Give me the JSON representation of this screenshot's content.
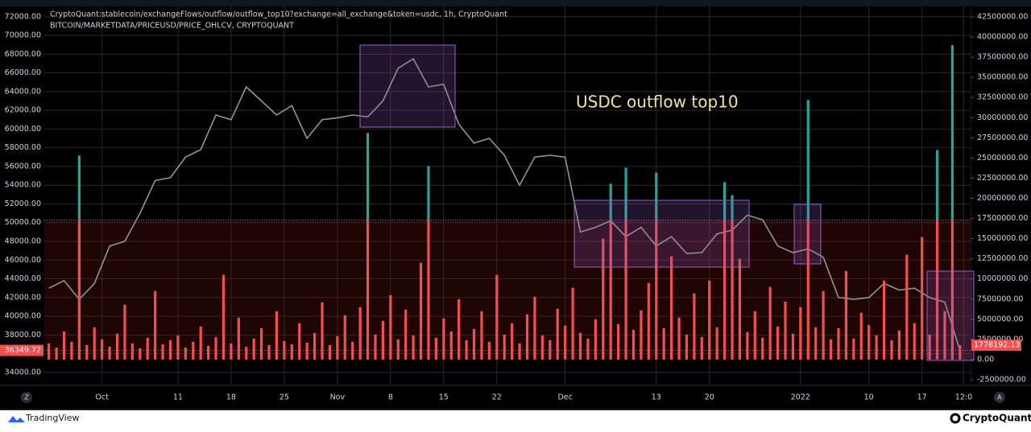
{
  "chart_data": {
    "type": "combo",
    "annotation": "USDC outflow top10",
    "xlim": [
      -7.6,
      114.4
    ],
    "ylim": [
      32700,
      73100
    ],
    "y2lim": [
      -3100000,
      43800000
    ],
    "grid": true,
    "threshold": 17300000,
    "xticks": [
      {
        "value": 0,
        "label": "Oct"
      },
      {
        "value": 10,
        "label": "11"
      },
      {
        "value": 17,
        "label": "18"
      },
      {
        "value": 24,
        "label": "25"
      },
      {
        "value": 31,
        "label": "Nov"
      },
      {
        "value": 38,
        "label": "8"
      },
      {
        "value": 45,
        "label": "15"
      },
      {
        "value": 52,
        "label": "22"
      },
      {
        "value": 61,
        "label": "Dec"
      },
      {
        "value": 73,
        "label": "13"
      },
      {
        "value": 80,
        "label": "20"
      },
      {
        "value": 92,
        "label": "2022"
      },
      {
        "value": 101,
        "label": "10"
      },
      {
        "value": 108,
        "label": "17"
      },
      {
        "value": 113.5,
        "label": "12:0"
      }
    ],
    "yticks": [
      {
        "value": 34000,
        "label": "34000.00"
      },
      {
        "value": 36000,
        "label": "36000.00"
      },
      {
        "value": 38000,
        "label": "38000.00"
      },
      {
        "value": 40000,
        "label": "40000.00"
      },
      {
        "value": 42000,
        "label": "42000.00"
      },
      {
        "value": 44000,
        "label": "44000.00"
      },
      {
        "value": 46000,
        "label": "46000.00"
      },
      {
        "value": 48000,
        "label": "48000.00"
      },
      {
        "value": 50000,
        "label": "50000.00"
      },
      {
        "value": 52000,
        "label": "52000.00"
      },
      {
        "value": 54000,
        "label": "54000.00"
      },
      {
        "value": 56000,
        "label": "56000.00"
      },
      {
        "value": 58000,
        "label": "58000.00"
      },
      {
        "value": 60000,
        "label": "60000.00"
      },
      {
        "value": 62000,
        "label": "62000.00"
      },
      {
        "value": 64000,
        "label": "64000.00"
      },
      {
        "value": 66000,
        "label": "66000.00"
      },
      {
        "value": 68000,
        "label": "68000.00"
      },
      {
        "value": 70000,
        "label": "70000.00"
      },
      {
        "value": 72000,
        "label": "72000.00"
      }
    ],
    "y2ticks": [
      {
        "value": -2500000,
        "label": "-2500000.00"
      },
      {
        "value": 0,
        "label": "0.00"
      },
      {
        "value": 2500000,
        "label": "2500000.00"
      },
      {
        "value": 5000000,
        "label": "5000000.00"
      },
      {
        "value": 7500000,
        "label": "7500000.00"
      },
      {
        "value": 10000000,
        "label": "10000000.00"
      },
      {
        "value": 12500000,
        "label": "12500000.00"
      },
      {
        "value": 15000000,
        "label": "15000000.00"
      },
      {
        "value": 17500000,
        "label": "17500000.00"
      },
      {
        "value": 20000000,
        "label": "20000000.00"
      },
      {
        "value": 22500000,
        "label": "22500000.00"
      },
      {
        "value": 25000000,
        "label": "25000000.00"
      },
      {
        "value": 27500000,
        "label": "27500000.00"
      },
      {
        "value": 30000000,
        "label": "30000000.00"
      },
      {
        "value": 32500000,
        "label": "32500000.00"
      },
      {
        "value": 35000000,
        "label": "35000000.00"
      },
      {
        "value": 37500000,
        "label": "37500000.00"
      },
      {
        "value": 40000000,
        "label": "40000000.00"
      },
      {
        "value": 42500000,
        "label": "42500000.00"
      }
    ],
    "series": [
      {
        "name": "BITCOIN/MARKETDATA/PRICEUSD/PRICE_OHLCV, CRYPTOQUANT",
        "type": "line",
        "color": "#8c9a8c",
        "x": [
          -7,
          -5,
          -3,
          -1,
          1,
          3,
          5,
          7,
          9,
          11,
          13,
          15,
          17,
          19,
          21,
          23,
          25,
          27,
          29,
          31,
          33,
          35,
          37,
          39,
          41,
          43,
          45,
          47,
          49,
          51,
          53,
          55,
          57,
          59,
          61,
          63,
          65,
          67,
          69,
          71,
          73,
          75,
          77,
          79,
          81,
          83,
          85,
          87,
          89,
          91,
          93,
          95,
          97,
          99,
          101,
          103,
          105,
          107,
          109,
          111,
          113
        ],
        "values": [
          43000,
          43800,
          41800,
          43500,
          47500,
          48000,
          51000,
          54500,
          54800,
          57000,
          57800,
          61500,
          61000,
          64500,
          63000,
          61500,
          62500,
          59000,
          61000,
          61200,
          61500,
          61300,
          63000,
          66500,
          67500,
          64500,
          64800,
          60500,
          58500,
          59000,
          57200,
          54000,
          57000,
          57200,
          57000,
          49000,
          49500,
          50200,
          48500,
          49500,
          47500,
          48500,
          46700,
          46800,
          48800,
          49200,
          50800,
          50300,
          47500,
          46800,
          47200,
          46300,
          42000,
          41800,
          42000,
          43500,
          42800,
          43000,
          42000,
          41500,
          36349.72
        ]
      },
      {
        "name": "CryptoQuant:stablecoin/exchangeFlows/outflow/outflow_top10?exchange=all_exchange&token=usdc, 1h, CryptoQuant",
        "type": "bar",
        "axis": "y2",
        "color": "#f0504f",
        "color_above": "#26a69a",
        "x": [
          -7,
          -6,
          -5,
          -4,
          -3,
          -2,
          -1,
          0,
          1,
          2,
          3,
          4,
          5,
          6,
          7,
          8,
          9,
          10,
          11,
          12,
          13,
          14,
          15,
          16,
          17,
          18,
          19,
          20,
          21,
          22,
          23,
          24,
          25,
          26,
          27,
          28,
          29,
          30,
          31,
          32,
          33,
          34,
          35,
          36,
          37,
          38,
          39,
          40,
          41,
          42,
          43,
          44,
          45,
          46,
          47,
          48,
          49,
          50,
          51,
          52,
          53,
          54,
          55,
          56,
          57,
          58,
          59,
          60,
          61,
          62,
          63,
          64,
          65,
          66,
          67,
          68,
          69,
          70,
          71,
          72,
          73,
          74,
          75,
          76,
          77,
          78,
          79,
          80,
          81,
          82,
          83,
          84,
          85,
          86,
          87,
          88,
          89,
          90,
          91,
          92,
          93,
          94,
          95,
          96,
          97,
          98,
          99,
          100,
          101,
          102,
          103,
          104,
          105,
          106,
          107,
          108,
          109,
          110,
          111,
          112,
          113
        ],
        "values": [
          2000000,
          1500000,
          3500000,
          2200000,
          25300000,
          1800000,
          4000000,
          2500000,
          1600000,
          3200000,
          6800000,
          2000000,
          1400000,
          2700000,
          8500000,
          1900000,
          2400000,
          3000000,
          1500000,
          2200000,
          4100000,
          1700000,
          2800000,
          10500000,
          2000000,
          5200000,
          1600000,
          2600000,
          3900000,
          1800000,
          6000000,
          2300000,
          1900000,
          4500000,
          2100000,
          3300000,
          7100000,
          1800000,
          2900000,
          5500000,
          2200000,
          6500000,
          28100000,
          3100000,
          4800000,
          8000000,
          2500000,
          6200000,
          3000000,
          12000000,
          24000000,
          2700000,
          5100000,
          3500000,
          7500000,
          2400000,
          3800000,
          6000000,
          2200000,
          10500000,
          3100000,
          4500000,
          2000000,
          5600000,
          7800000,
          3000000,
          2400000,
          6300000,
          4200000,
          8900000,
          3300000,
          2600000,
          5000000,
          15000000,
          21800000,
          4400000,
          23800000,
          3700000,
          6100000,
          9500000,
          23200000,
          3900000,
          12800000,
          5200000,
          3100000,
          8200000,
          2800000,
          9800000,
          4000000,
          22000000,
          20400000,
          12500000,
          3400000,
          6000000,
          2700000,
          9000000,
          4100000,
          7200000,
          3200000,
          6500000,
          32200000,
          4000000,
          8500000,
          2500000,
          3900000,
          11000000,
          2600000,
          5800000,
          4300000,
          3000000,
          9800000,
          2400000,
          3600000,
          13000000,
          4500000,
          15200000,
          3100000,
          26000000,
          6000000,
          39000000,
          1778192.13
        ]
      }
    ]
  },
  "footer": {
    "left": "TradingView",
    "right": "CryptoQuant"
  }
}
